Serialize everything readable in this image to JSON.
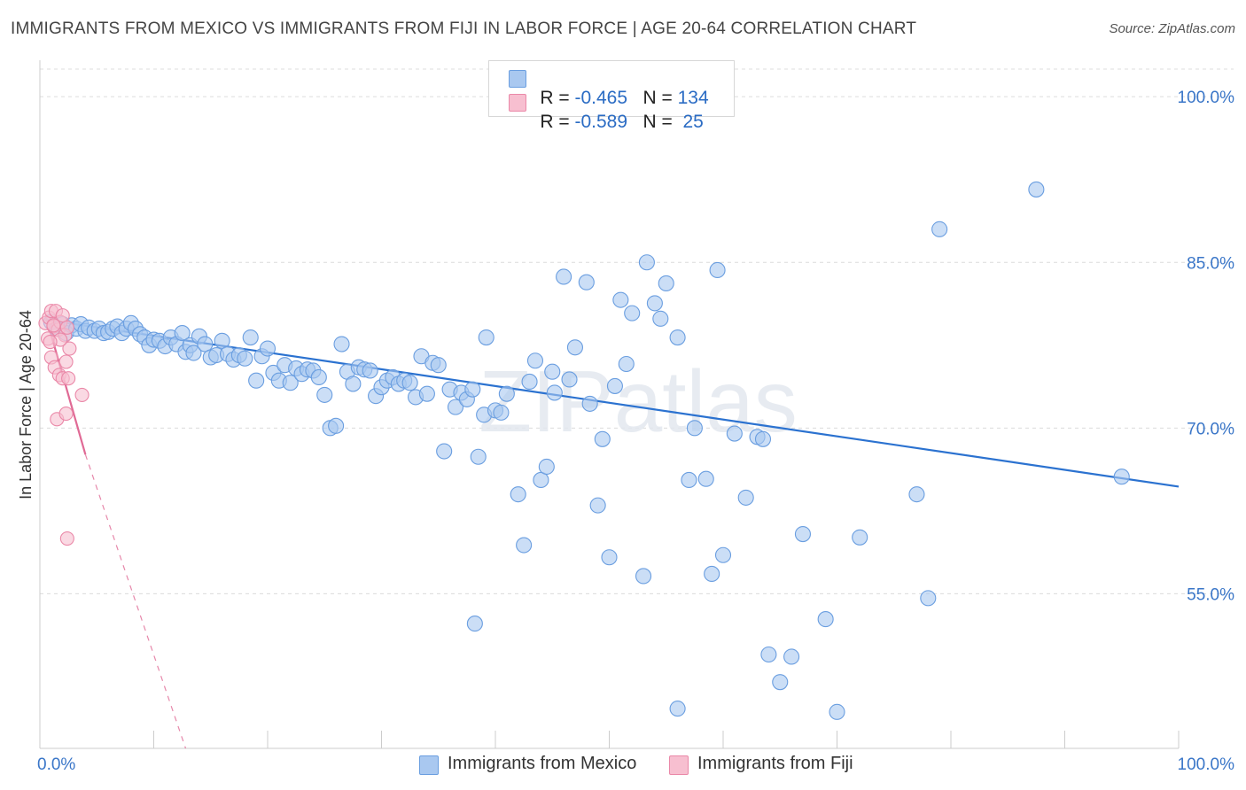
{
  "title": "IMMIGRANTS FROM MEXICO VS IMMIGRANTS FROM FIJI IN LABOR FORCE | AGE 20-64 CORRELATION CHART",
  "source": "Source: ZipAtlas.com",
  "watermark": "ZIPatlas",
  "legend": {
    "rows": [
      {
        "r_label": "R = ",
        "r_value": "-0.465",
        "n_label": "N = ",
        "n_value": "134",
        "color": "#a9c8f0",
        "border": "#6a9ee0"
      },
      {
        "r_label": "R = ",
        "r_value": "-0.589",
        "n_label": "N = ",
        "n_value": " 25",
        "color": "#f7bfd0",
        "border": "#ea88a8"
      }
    ]
  },
  "bottom_legend": [
    {
      "label": "Immigrants from Mexico",
      "color": "#a9c8f0",
      "border": "#6a9ee0"
    },
    {
      "label": "Immigrants from Fiji",
      "color": "#f7bfd0",
      "border": "#ea88a8"
    }
  ],
  "chart_data": {
    "type": "scatter",
    "title": "IMMIGRANTS FROM MEXICO VS IMMIGRANTS FROM FIJI IN LABOR FORCE | AGE 20-64 CORRELATION CHART",
    "xlabel": "",
    "ylabel": "In Labor Force | Age 20-64",
    "xlim": [
      0,
      100
    ],
    "ylim": [
      41,
      102.5
    ],
    "x_tick_labels": [
      "0.0%",
      "100.0%"
    ],
    "y_ticks": [
      55,
      70,
      85,
      100
    ],
    "y_tick_labels": [
      "55.0%",
      "70.0%",
      "85.0%",
      "100.0%"
    ],
    "grid": true,
    "series": [
      {
        "name": "Immigrants from Mexico",
        "color": "#a9c8f0",
        "edge": "#6a9ee0",
        "trend": {
          "x": [
            0.5,
            100
          ],
          "y": [
            79.8,
            64.7
          ],
          "color": "#2b72d0"
        },
        "points": [
          [
            1.0,
            79.6
          ],
          [
            1.5,
            79.0
          ],
          [
            2.0,
            79.4
          ],
          [
            2.3,
            78.6
          ],
          [
            2.8,
            79.3
          ],
          [
            3.2,
            79.0
          ],
          [
            3.6,
            79.4
          ],
          [
            4.0,
            78.8
          ],
          [
            4.3,
            79.1
          ],
          [
            4.8,
            78.8
          ],
          [
            5.2,
            79.0
          ],
          [
            5.6,
            78.6
          ],
          [
            6.0,
            78.7
          ],
          [
            6.4,
            79.0
          ],
          [
            6.8,
            79.2
          ],
          [
            7.2,
            78.6
          ],
          [
            7.6,
            79.0
          ],
          [
            8.0,
            79.5
          ],
          [
            8.4,
            79.0
          ],
          [
            8.8,
            78.5
          ],
          [
            9.2,
            78.2
          ],
          [
            9.6,
            77.5
          ],
          [
            10.0,
            78.0
          ],
          [
            10.5,
            77.9
          ],
          [
            11.0,
            77.4
          ],
          [
            11.5,
            78.2
          ],
          [
            12.0,
            77.6
          ],
          [
            12.5,
            78.6
          ],
          [
            12.8,
            76.9
          ],
          [
            13.2,
            77.5
          ],
          [
            13.5,
            76.8
          ],
          [
            14.0,
            78.3
          ],
          [
            14.5,
            77.6
          ],
          [
            15.0,
            76.4
          ],
          [
            15.5,
            76.6
          ],
          [
            16.0,
            77.9
          ],
          [
            16.5,
            76.7
          ],
          [
            17.0,
            76.2
          ],
          [
            17.5,
            76.6
          ],
          [
            18.0,
            76.3
          ],
          [
            18.5,
            78.2
          ],
          [
            19.0,
            74.3
          ],
          [
            19.5,
            76.5
          ],
          [
            20.0,
            77.2
          ],
          [
            20.5,
            75.0
          ],
          [
            21.0,
            74.3
          ],
          [
            21.5,
            75.7
          ],
          [
            22.0,
            74.1
          ],
          [
            22.5,
            75.4
          ],
          [
            23.0,
            74.9
          ],
          [
            23.5,
            75.3
          ],
          [
            24.0,
            75.2
          ],
          [
            24.5,
            74.6
          ],
          [
            25.0,
            73.0
          ],
          [
            25.5,
            70.0
          ],
          [
            26.0,
            70.2
          ],
          [
            26.5,
            77.6
          ],
          [
            27.0,
            75.1
          ],
          [
            27.5,
            74.0
          ],
          [
            28.0,
            75.5
          ],
          [
            28.5,
            75.3
          ],
          [
            29.0,
            75.2
          ],
          [
            29.5,
            72.9
          ],
          [
            30.0,
            73.7
          ],
          [
            30.5,
            74.3
          ],
          [
            31.0,
            74.6
          ],
          [
            31.5,
            74.0
          ],
          [
            32.0,
            74.3
          ],
          [
            32.5,
            74.1
          ],
          [
            33.0,
            72.8
          ],
          [
            33.5,
            76.5
          ],
          [
            34.0,
            73.1
          ],
          [
            34.5,
            75.9
          ],
          [
            35.0,
            75.7
          ],
          [
            35.5,
            67.9
          ],
          [
            36.0,
            73.5
          ],
          [
            36.5,
            71.9
          ],
          [
            37.0,
            73.2
          ],
          [
            37.5,
            72.6
          ],
          [
            38.0,
            73.5
          ],
          [
            38.5,
            67.4
          ],
          [
            39.0,
            71.2
          ],
          [
            39.2,
            78.2
          ],
          [
            40.0,
            71.6
          ],
          [
            40.5,
            71.4
          ],
          [
            41.0,
            73.1
          ],
          [
            42.0,
            64.0
          ],
          [
            42.5,
            59.4
          ],
          [
            43.0,
            74.2
          ],
          [
            43.5,
            76.1
          ],
          [
            44.0,
            65.3
          ],
          [
            44.5,
            66.5
          ],
          [
            45.0,
            75.1
          ],
          [
            45.2,
            73.2
          ],
          [
            46.0,
            83.7
          ],
          [
            46.5,
            74.4
          ],
          [
            47.0,
            77.3
          ],
          [
            48.0,
            83.2
          ],
          [
            48.3,
            72.2
          ],
          [
            49.0,
            63.0
          ],
          [
            49.4,
            69.0
          ],
          [
            50.0,
            58.3
          ],
          [
            50.5,
            73.8
          ],
          [
            51.0,
            81.6
          ],
          [
            51.5,
            75.8
          ],
          [
            52.0,
            80.4
          ],
          [
            53.0,
            56.6
          ],
          [
            53.3,
            85.0
          ],
          [
            54.0,
            81.3
          ],
          [
            54.5,
            79.9
          ],
          [
            55.0,
            83.1
          ],
          [
            56.0,
            78.2
          ],
          [
            57.0,
            65.3
          ],
          [
            57.5,
            70.0
          ],
          [
            58.5,
            65.4
          ],
          [
            59.0,
            56.8
          ],
          [
            59.5,
            84.3
          ],
          [
            60.0,
            58.5
          ],
          [
            61.0,
            69.5
          ],
          [
            62.0,
            63.7
          ],
          [
            63.0,
            69.2
          ],
          [
            63.5,
            69.0
          ],
          [
            64.0,
            49.5
          ],
          [
            65.0,
            47.0
          ],
          [
            66.0,
            49.3
          ],
          [
            67.0,
            60.4
          ],
          [
            69.0,
            52.7
          ],
          [
            70.0,
            44.3
          ],
          [
            72.0,
            60.1
          ],
          [
            77.0,
            64.0
          ],
          [
            78.0,
            54.6
          ],
          [
            79.0,
            88.0
          ],
          [
            87.5,
            91.6
          ],
          [
            95.0,
            65.6
          ],
          [
            56.0,
            44.6
          ],
          [
            38.2,
            52.3
          ],
          [
            48.5,
            100.0
          ]
        ]
      },
      {
        "name": "Immigrants from Fiji",
        "color": "#f7bfd0",
        "edge": "#ea88a8",
        "trend": {
          "x": [
            0.5,
            4.0
          ],
          "y": [
            80.2,
            67.6
          ],
          "color": "#e06a95",
          "dashed_to": {
            "x": 12.8,
            "y": 41.0
          }
        },
        "points": [
          [
            0.5,
            79.5
          ],
          [
            0.8,
            80.0
          ],
          [
            1.0,
            80.6
          ],
          [
            1.2,
            79.2
          ],
          [
            1.4,
            80.6
          ],
          [
            1.6,
            78.9
          ],
          [
            1.8,
            79.6
          ],
          [
            2.0,
            80.2
          ],
          [
            2.2,
            78.4
          ],
          [
            2.4,
            79.1
          ],
          [
            0.7,
            78.1
          ],
          [
            1.0,
            76.4
          ],
          [
            1.3,
            75.5
          ],
          [
            1.7,
            74.8
          ],
          [
            2.0,
            74.5
          ],
          [
            2.3,
            76.0
          ],
          [
            2.6,
            77.2
          ],
          [
            1.5,
            70.8
          ],
          [
            2.3,
            71.3
          ],
          [
            3.7,
            73.0
          ],
          [
            1.8,
            78.0
          ],
          [
            0.9,
            77.8
          ],
          [
            2.5,
            74.5
          ],
          [
            1.2,
            79.3
          ],
          [
            2.4,
            60.0
          ]
        ]
      }
    ]
  }
}
